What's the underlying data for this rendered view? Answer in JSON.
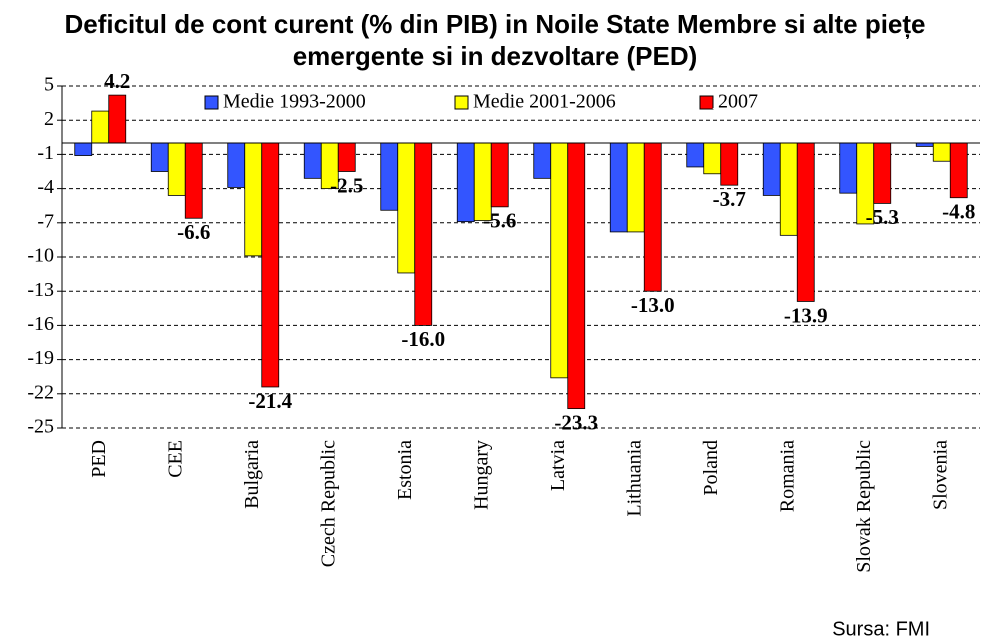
{
  "chart_data": {
    "type": "bar",
    "title": "Deficitul de cont curent (% din PIB) in Noile State Membre si alte piețe emergente si in dezvoltare (PED)",
    "source": "Sursa: FMI",
    "categories": [
      "PED",
      "CEE",
      "Bulgaria",
      "Czech Republic",
      "Estonia",
      "Hungary",
      "Latvia",
      "Lithuania",
      "Poland",
      "Romania",
      "Slovak Republic",
      "Slovenia"
    ],
    "series": [
      {
        "name": "Medie 1993-2000",
        "color": "#3355ff",
        "values": [
          -1.1,
          -2.5,
          -3.9,
          -3.1,
          -5.9,
          -6.9,
          -3.1,
          -7.8,
          -2.1,
          -4.6,
          -4.4,
          -0.3
        ]
      },
      {
        "name": "Medie 2001-2006",
        "color": "#ffff00",
        "values": [
          2.8,
          -4.6,
          -9.9,
          -4.0,
          -11.4,
          -6.8,
          -20.6,
          -7.8,
          -2.7,
          -8.1,
          -7.1,
          -1.6
        ]
      },
      {
        "name": "2007",
        "color": "#ff0000",
        "values": [
          4.2,
          -6.6,
          -21.4,
          -2.5,
          -16.0,
          -5.6,
          -23.3,
          -13.0,
          -3.7,
          -13.9,
          -5.3,
          -4.8
        ],
        "value_labels": [
          "4.2",
          "-6.6",
          "-21.4",
          "-2.5",
          "-16.0",
          "-5.6",
          "-23.3",
          "-13.0",
          "-3.7",
          "-13.9",
          "-5.3",
          "-4.8"
        ]
      }
    ],
    "ylim": [
      -25,
      5
    ],
    "yticks": [
      5,
      2,
      -1,
      -4,
      -7,
      -10,
      -13,
      -16,
      -19,
      -22,
      -25
    ],
    "grid": true
  }
}
